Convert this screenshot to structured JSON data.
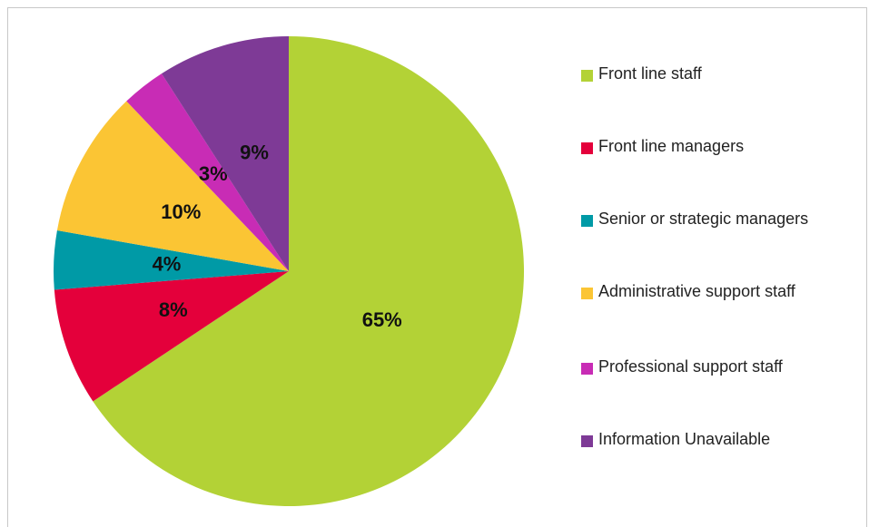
{
  "chart_data": {
    "type": "pie",
    "categories": [
      "Front line staff",
      "Front line managers",
      "Senior or strategic managers",
      "Administrative support staff",
      "Professional support staff",
      "Information Unavailable"
    ],
    "values": [
      65,
      8,
      4,
      10,
      3,
      9
    ],
    "value_labels": [
      "65%",
      "8%",
      "4%",
      "10%",
      "3%",
      "9%"
    ],
    "colors": [
      "#b3d236",
      "#e4003b",
      "#009aa6",
      "#fbc534",
      "#c82cb5",
      "#7e3a96"
    ],
    "legend": "right"
  }
}
